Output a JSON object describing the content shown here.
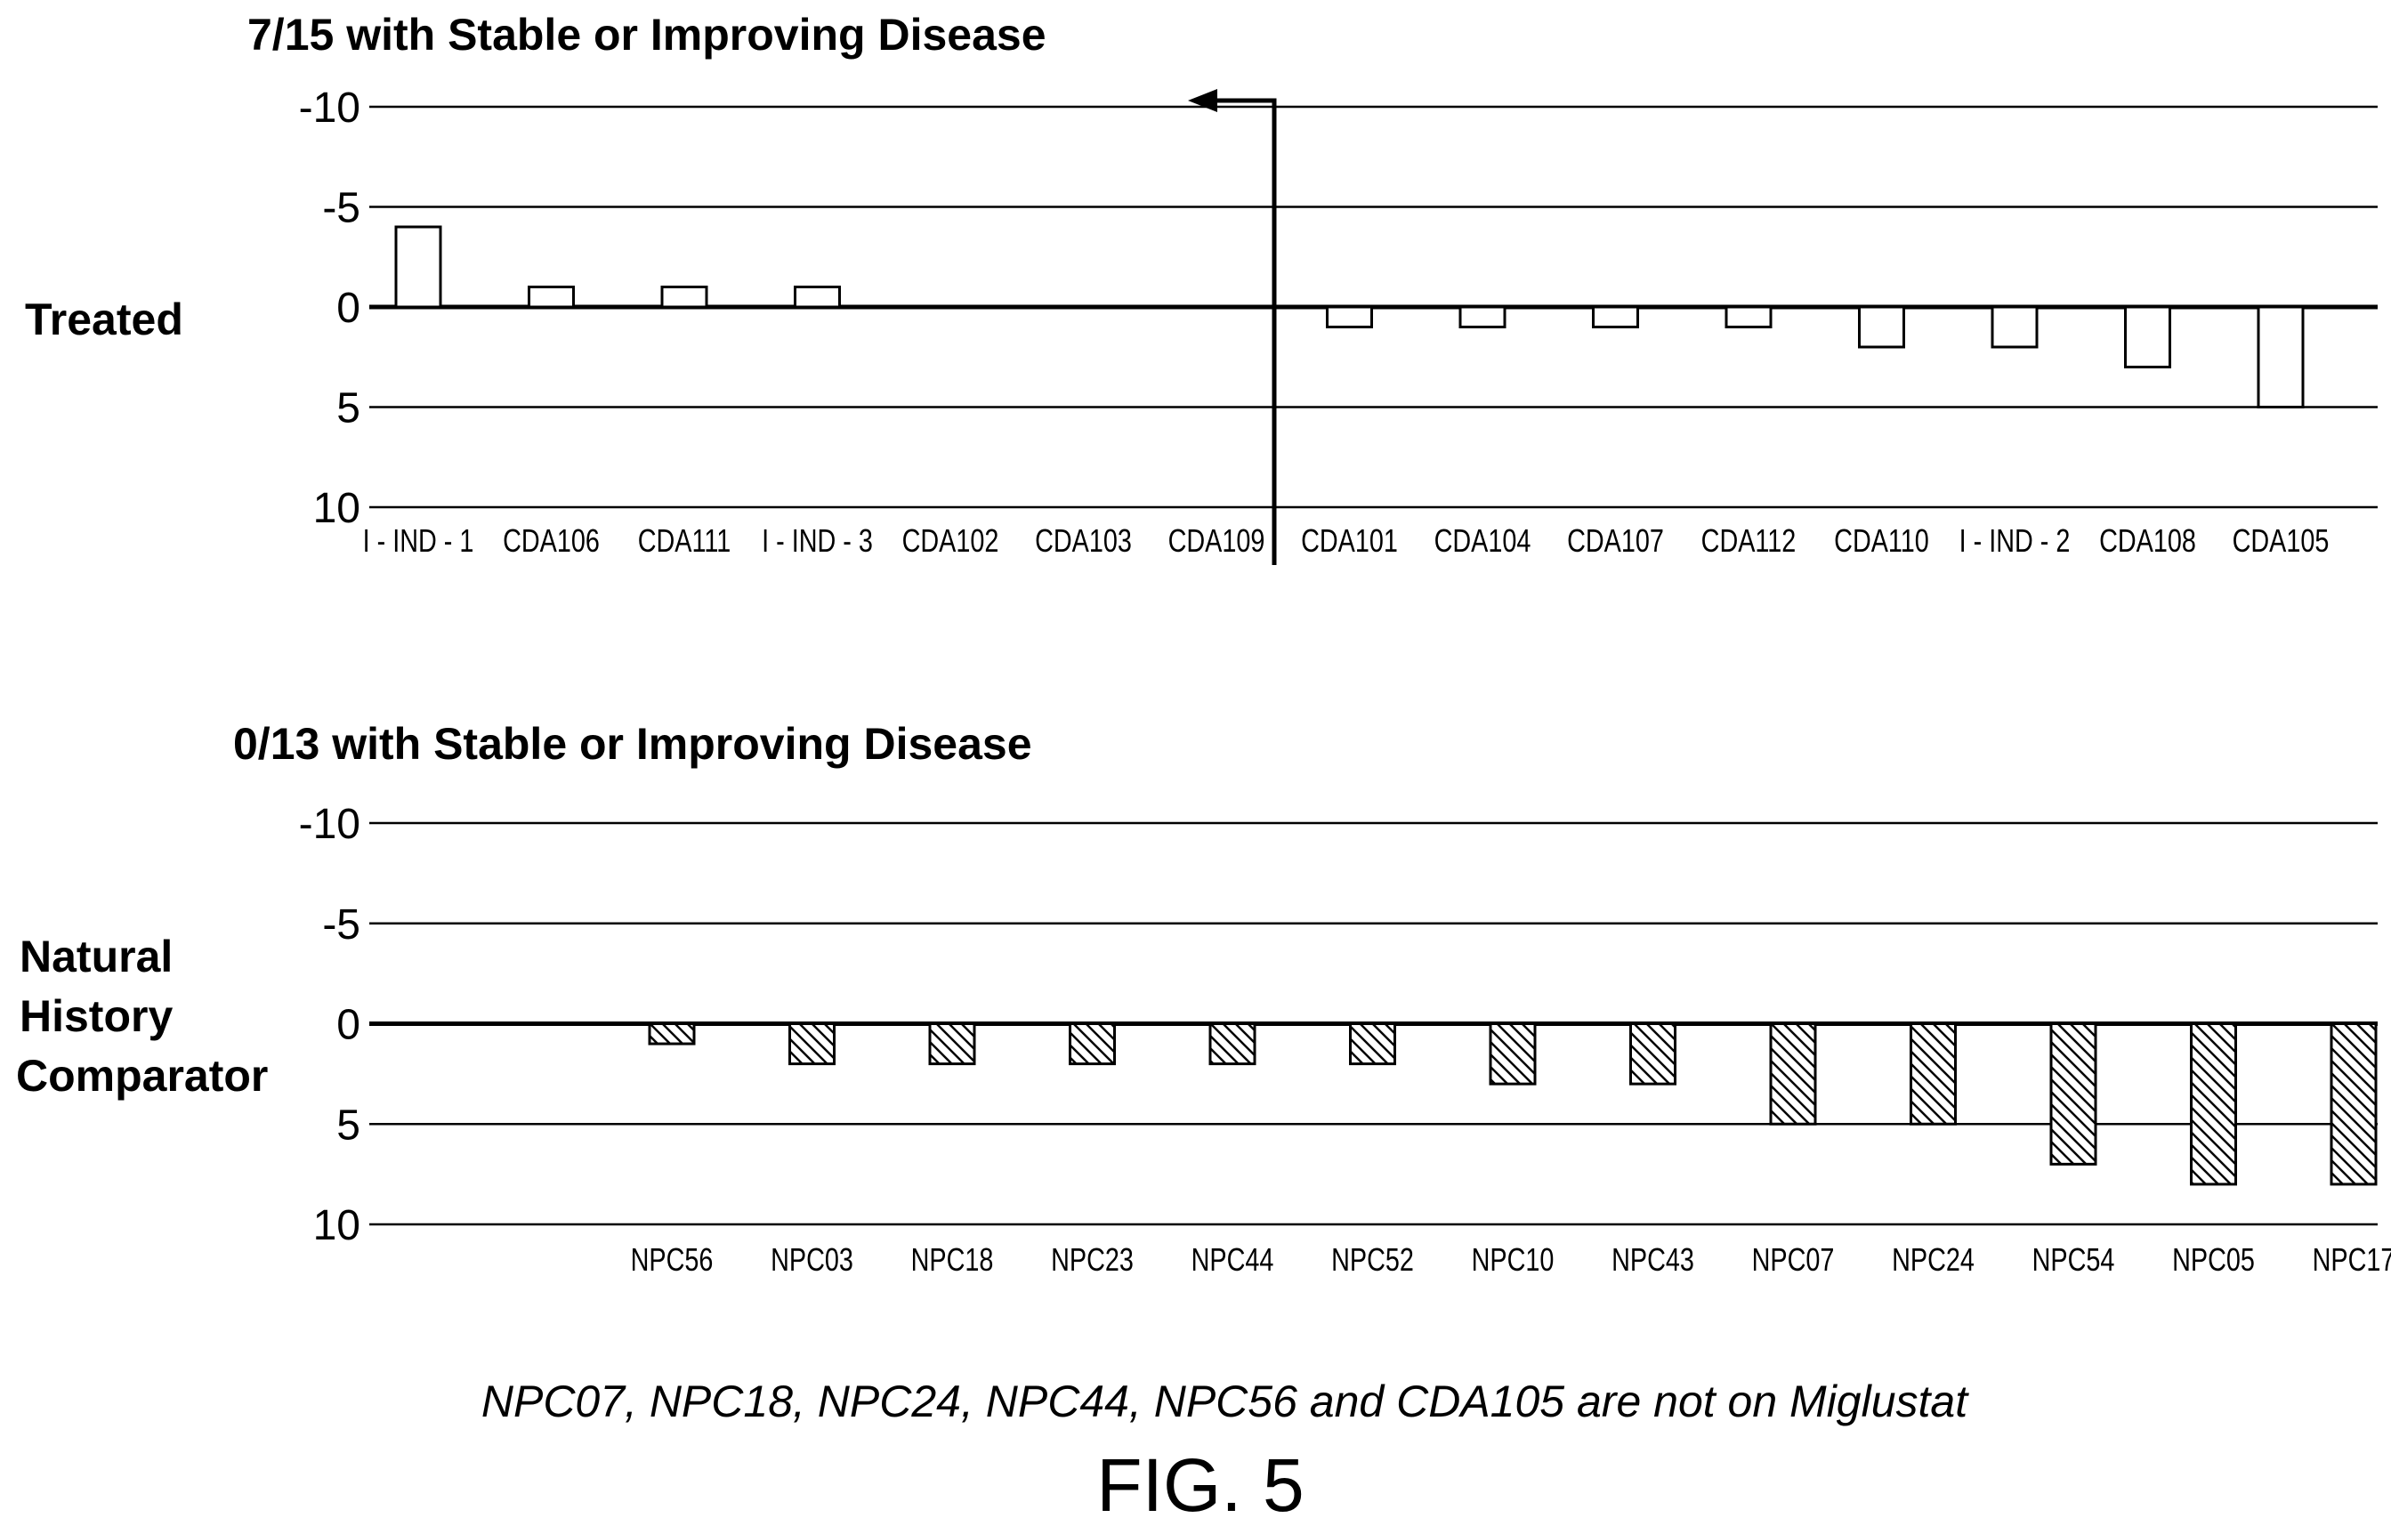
{
  "chart_data": [
    {
      "type": "bar",
      "title": "7/15 with Stable or Improving Disease",
      "row_label": [
        "Treated"
      ],
      "ylim": [
        -10,
        10
      ],
      "y_inverted": true,
      "y_ticks": [
        "-10",
        "-5",
        "0",
        "5",
        "10"
      ],
      "grid": true,
      "bar_style": "hollow",
      "categories": [
        "I - IND - 1",
        "CDA106",
        "CDA111",
        "I - IND - 3",
        "CDA102",
        "CDA103",
        "CDA109",
        "CDA101",
        "CDA104",
        "CDA107",
        "CDA112",
        "CDA110",
        "I - IND - 2",
        "CDA108",
        "CDA105"
      ],
      "values": [
        -4,
        -1,
        -1,
        -1,
        0,
        0,
        0,
        1,
        1,
        1,
        1,
        2,
        2,
        3,
        5
      ],
      "annotation": "vertical divider after CDA109 with arrow pointing left at -10"
    },
    {
      "type": "bar",
      "title": "0/13 with Stable or Improving Disease",
      "row_label": [
        "Natural",
        "History",
        "Comparator"
      ],
      "ylim": [
        -10,
        10
      ],
      "y_inverted": true,
      "y_ticks": [
        "-10",
        "-5",
        "0",
        "5",
        "10"
      ],
      "grid": true,
      "bar_style": "hatched",
      "categories": [
        "NPC56",
        "NPC03",
        "NPC18",
        "NPC23",
        "NPC44",
        "NPC52",
        "NPC10",
        "NPC43",
        "NPC07",
        "NPC24",
        "NPC54",
        "NPC05",
        "NPC17"
      ],
      "values": [
        1,
        2,
        2,
        2,
        2,
        2,
        3,
        3,
        5,
        5,
        7,
        8,
        8
      ]
    }
  ],
  "footnote": "NPC07, NPC18, NPC24, NPC44, NPC56 and CDA105 are not on Miglustat",
  "figure_label": "FIG. 5"
}
